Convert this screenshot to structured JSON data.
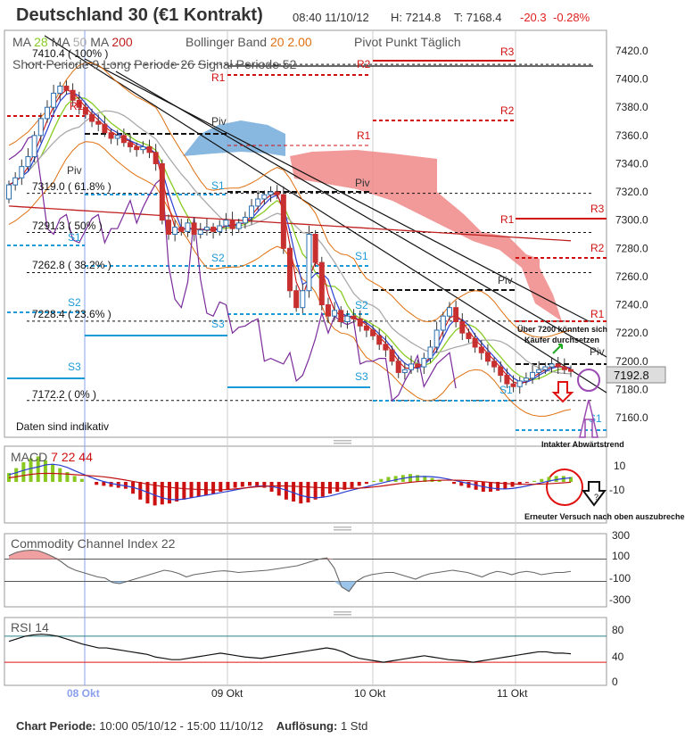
{
  "header": {
    "title": "Deutschland 30 (€1 Kontrakt)",
    "time": "08:40 11/10/12",
    "high": "H: 7214.8",
    "low": "T: 7168.4",
    "change": "-20.3",
    "change_pct": "-0.28%"
  },
  "legend": {
    "ma_label": "MA",
    "ma1": "28",
    "ma2": "50",
    "ma3": "200",
    "bollinger": "Bollinger Band",
    "boll_p1": "20",
    "boll_p2": "2.00",
    "pivot": "Pivot Punkt",
    "pivot_mode": "Täglich",
    "short": "Short Periode",
    "short_v": "9",
    "long": "Long Periode",
    "long_v": "26",
    "signal": "Signal Periode",
    "signal_v": "52"
  },
  "colors": {
    "up": "#d03030",
    "down": "#2a6fb0",
    "candle_body": "#c83030",
    "ma28": "#88cc22",
    "ma200": "#c02020",
    "boll": "#e07010",
    "pivot_r": "#d01010",
    "pivot_s": "#1a9ad8",
    "cloud_red": "#f08888",
    "cloud_blue": "#6aa6d8",
    "macd_pos": "#88c820",
    "macd_neg": "#cc1010",
    "cci_line": "#666666",
    "rsi_line": "#111111",
    "purple": "#7a2a9a"
  },
  "annotations": {
    "daten": "Daten sind indikativ",
    "note1": "Über 7200 könnten sich",
    "note2": "Käufer durchsetzen",
    "note3": "Intakter Abwärtstrend",
    "note4": "Erneuter Versuch nach oben auszubrechen?",
    "last_price": "7192.8",
    "piv": "Piv",
    "macd_qmark": "?"
  },
  "fib_levels": [
    {
      "label": "7410.4 ( 100% )",
      "value": 7410.4
    },
    {
      "label": "7319.0 ( 61.8% )",
      "value": 7319.0
    },
    {
      "label": "7291.3 ( 50% )",
      "value": 7291.3
    },
    {
      "label": "7262.8 ( 38.2% )",
      "value": 7262.8
    },
    {
      "label": "7228.4 ( 23.6% )",
      "value": 7228.4
    },
    {
      "label": "7172.2 ( 0% )",
      "value": 7172.2
    }
  ],
  "chart_data": {
    "type": "candlestick",
    "y_ticks": [
      "7420.0",
      "7400.0",
      "7380.0",
      "7360.0",
      "7340.0",
      "7320.0",
      "7300.0",
      "7280.0",
      "7260.0",
      "7240.0",
      "7220.0",
      "7200.0",
      "7180.0",
      "7160.0"
    ],
    "ylim": [
      7152,
      7425
    ],
    "x_labels": [
      "08 Okt",
      "09 Okt",
      "10 Okt",
      "11 Okt"
    ],
    "closes": [
      7325,
      7330,
      7338,
      7345,
      7360,
      7372,
      7380,
      7390,
      7395,
      7392,
      7385,
      7380,
      7375,
      7370,
      7368,
      7362,
      7358,
      7360,
      7355,
      7352,
      7350,
      7352,
      7348,
      7340,
      7300,
      7290,
      7295,
      7292,
      7298,
      7290,
      7293,
      7295,
      7292,
      7296,
      7300,
      7294,
      7298,
      7302,
      7310,
      7315,
      7318,
      7320,
      7318,
      7280,
      7250,
      7238,
      7250,
      7290,
      7270,
      7240,
      7232,
      7236,
      7228,
      7232,
      7230,
      7225,
      7222,
      7218,
      7212,
      7208,
      7200,
      7192,
      7194,
      7198,
      7196,
      7202,
      7210,
      7222,
      7232,
      7238,
      7228,
      7220,
      7216,
      7210,
      7206,
      7200,
      7196,
      7190,
      7184,
      7182,
      7186,
      7188,
      7192,
      7194,
      7196,
      7198,
      7196,
      7194,
      7192.8
    ],
    "macd": {
      "labels": [
        "10",
        "-10"
      ],
      "params": [
        "7",
        "22",
        "44"
      ],
      "histogram": [
        9,
        14,
        20,
        24,
        26,
        22,
        18,
        14,
        10,
        6,
        3,
        0,
        -3,
        -4,
        -5,
        -6,
        -7,
        -12,
        -18,
        -22,
        -24,
        -23,
        -22,
        -20,
        -18,
        -16,
        -15,
        -14,
        -12,
        -10,
        -8,
        -6,
        -5,
        -4,
        -4,
        -6,
        -10,
        -14,
        -18,
        -20,
        -22,
        -21,
        -18,
        -15,
        -12,
        -10,
        -8,
        -6,
        -4,
        -2,
        1,
        3,
        5,
        6,
        7,
        8,
        7,
        6,
        4,
        2,
        0,
        -2,
        -4,
        -6,
        -8,
        -10,
        -10,
        -9,
        -7,
        -5,
        -3,
        -1,
        1,
        3,
        5,
        6,
        6,
        5
      ]
    },
    "cci": {
      "title": "Commodity Channel Index",
      "period": "22",
      "labels": [
        "300",
        "100",
        "-100",
        "-300"
      ],
      "values": [
        130,
        160,
        175,
        180,
        175,
        150,
        120,
        80,
        30,
        0,
        -20,
        -40,
        -60,
        -70,
        -110,
        -120,
        -100,
        -80,
        -60,
        -40,
        -20,
        0,
        -10,
        -30,
        -60,
        -40,
        -30,
        -20,
        -10,
        -5,
        -10,
        -20,
        -15,
        -10,
        -5,
        0,
        10,
        20,
        30,
        40,
        60,
        80,
        100,
        110,
        20,
        -150,
        -190,
        -100,
        -60,
        -40,
        -30,
        -20,
        -20,
        -40,
        -60,
        -80,
        -50,
        -30,
        -20,
        -10,
        0,
        -10,
        -20,
        -40,
        -60,
        -30,
        -10,
        -20,
        -40,
        -20,
        -10,
        -20,
        -40,
        -30,
        -20,
        -20,
        -10
      ]
    },
    "rsi": {
      "title": "RSI",
      "period": "14",
      "labels": [
        "80",
        "40",
        "0"
      ],
      "values": [
        62,
        66,
        70,
        72,
        73,
        72,
        70,
        66,
        62,
        58,
        55,
        52,
        52,
        50,
        48,
        46,
        44,
        42,
        38,
        36,
        34,
        34,
        36,
        38,
        40,
        42,
        44,
        42,
        40,
        38,
        37,
        36,
        38,
        40,
        42,
        44,
        46,
        48,
        50,
        52,
        50,
        46,
        40,
        36,
        34,
        32,
        30,
        32,
        34,
        36,
        38,
        40,
        38,
        36,
        34,
        33,
        32,
        30,
        32,
        34,
        36,
        38,
        40,
        42,
        44,
        46,
        46,
        44,
        44,
        43
      ]
    }
  }
}
